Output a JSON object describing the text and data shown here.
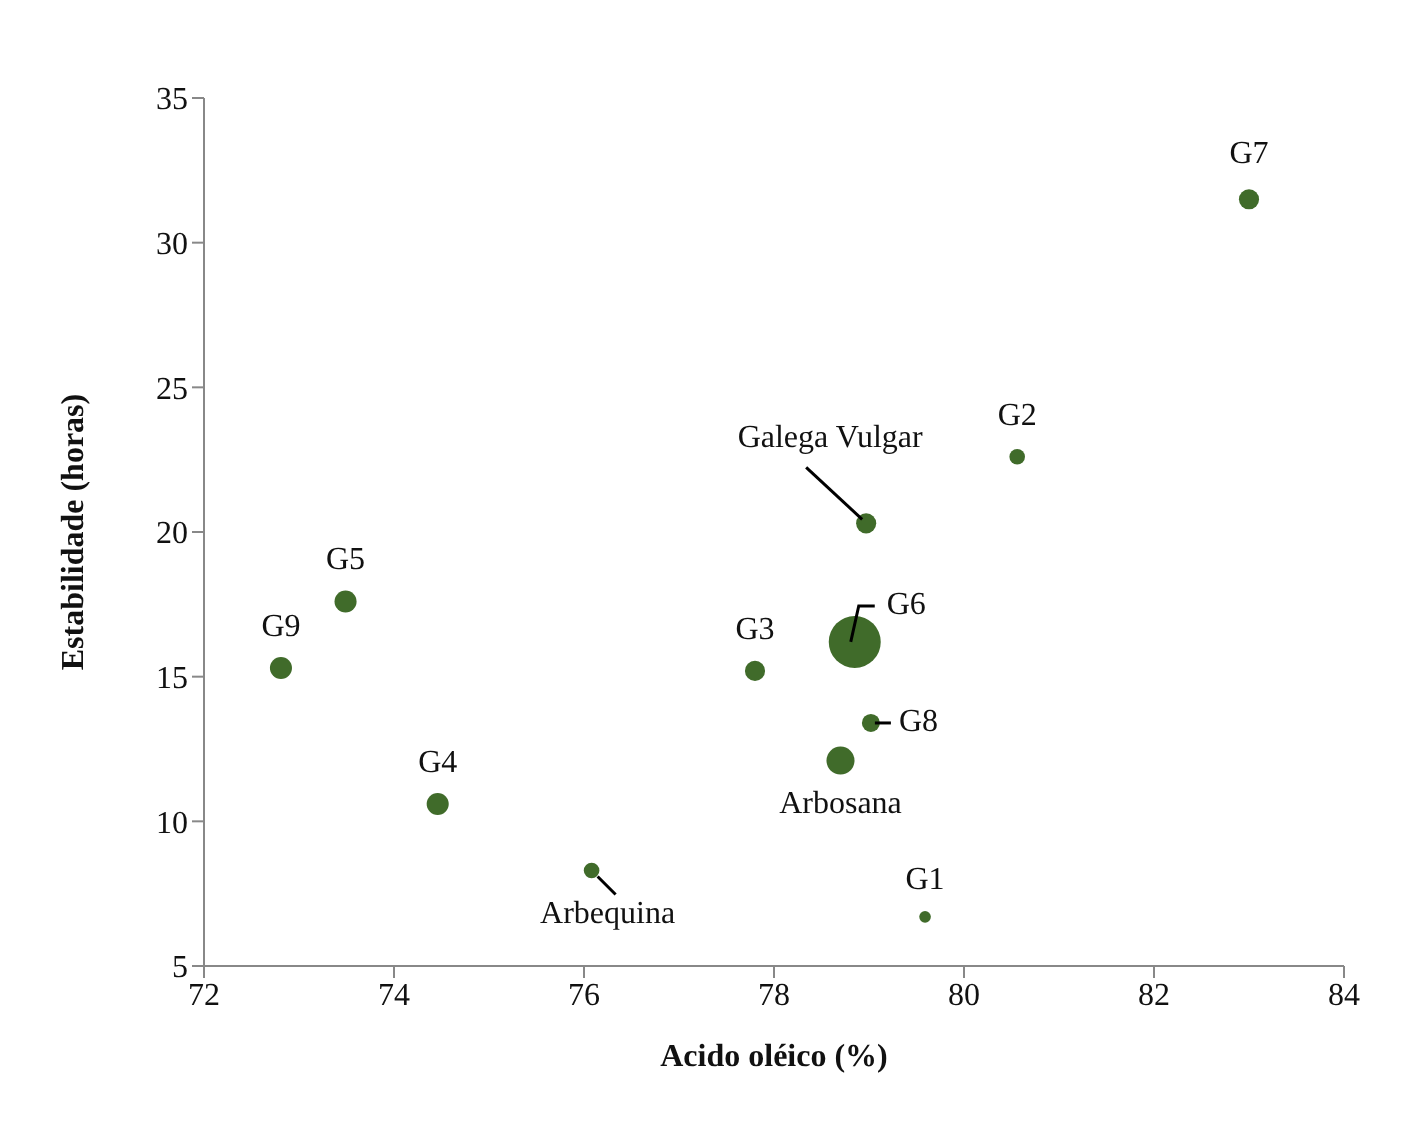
{
  "chart_data": {
    "type": "bubble",
    "xlabel": "Acido oléico (%)",
    "ylabel": "Estabilidade (horas)",
    "x": [
      72.81,
      73.49,
      74.46,
      76.08,
      77.8,
      78.97,
      80.56,
      83.0,
      78.85,
      79.02,
      78.7,
      79.59
    ],
    "values": [
      15.3,
      17.6,
      10.6,
      8.3,
      15.2,
      20.3,
      22.6,
      31.5,
      16.2,
      13.4,
      12.1,
      6.7
    ],
    "sizes": [
      0.18,
      0.18,
      0.18,
      0.09,
      0.15,
      0.15,
      0.09,
      0.15,
      1,
      0.12,
      0.29,
      0.05
    ],
    "color": "#406b2a",
    "xlim": [
      72,
      84
    ],
    "xticks": [
      72,
      74,
      76,
      78,
      80,
      82,
      84
    ],
    "ylim": [
      5,
      35
    ],
    "yticks": [
      5,
      10,
      15,
      20,
      25,
      30,
      35
    ],
    "annotations": [
      {
        "text": "G9",
        "x": 72.81,
        "y": 15.3
      },
      {
        "text": "G5",
        "x": 73.49,
        "y": 17.6
      },
      {
        "text": "G4",
        "x": 74.46,
        "y": 10.6
      },
      {
        "text": "Arbequina",
        "x": 76.08,
        "y": 8.3
      },
      {
        "text": "G3",
        "x": 77.8,
        "y": 15.2
      },
      {
        "text": "Galega Vulgar",
        "x": 78.97,
        "y": 20.3
      },
      {
        "text": "G2",
        "x": 80.56,
        "y": 22.6
      },
      {
        "text": "G7",
        "x": 83.0,
        "y": 31.5
      },
      {
        "text": "G6",
        "x": 78.85,
        "y": 16.2
      },
      {
        "text": "G8",
        "x": 79.02,
        "y": 13.4
      },
      {
        "text": "Arbosana",
        "x": 78.7,
        "y": 12.1
      },
      {
        "text": "G1",
        "x": 79.59,
        "y": 6.7
      }
    ]
  }
}
